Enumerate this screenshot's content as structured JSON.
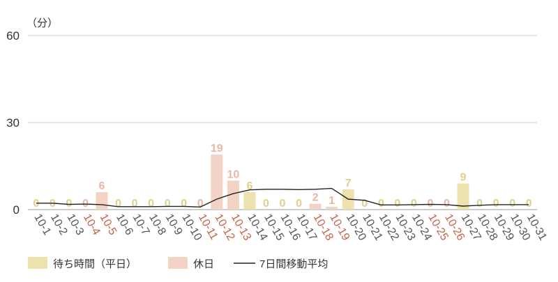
{
  "chart_data": {
    "type": "bar",
    "unit_label": "（分）",
    "ylim": [
      0,
      60
    ],
    "y_ticks": [
      "0",
      "30",
      "60"
    ],
    "grid": true,
    "categories": [
      "10-1",
      "10-2",
      "10-3",
      "10-4",
      "10-5",
      "10-6",
      "10-7",
      "10-8",
      "10-9",
      "10-10",
      "10-11",
      "10-12",
      "10-13",
      "10-14",
      "10-15",
      "10-16",
      "10-17",
      "10-18",
      "10-19",
      "10-20",
      "10-21",
      "10-22",
      "10-23",
      "10-24",
      "10-25",
      "10-26",
      "10-27",
      "10-28",
      "10-29",
      "10-30",
      "10-31"
    ],
    "holiday_flags": [
      false,
      false,
      false,
      true,
      true,
      false,
      false,
      false,
      false,
      false,
      true,
      true,
      true,
      false,
      false,
      false,
      false,
      true,
      true,
      false,
      false,
      false,
      false,
      false,
      true,
      true,
      false,
      false,
      false,
      false,
      false
    ],
    "values": [
      0,
      0,
      0,
      0,
      6,
      0,
      0,
      0,
      0,
      0,
      0,
      19,
      10,
      6,
      0,
      0,
      0,
      2,
      1,
      7,
      0,
      0,
      0,
      0,
      0,
      0,
      9,
      0,
      0,
      0,
      0
    ],
    "moving_average": [
      2.2,
      2.2,
      1.8,
      1.9,
      1.7,
      1.0,
      1.0,
      1.0,
      1.1,
      1.1,
      0.9,
      3.6,
      5.5,
      6.8,
      7.0,
      7.0,
      6.9,
      7.0,
      7.3,
      3.6,
      3.2,
      1.6,
      1.6,
      1.7,
      1.8,
      1.7,
      1.2,
      1.5,
      1.7,
      1.7,
      1.7
    ],
    "legend_position": "bottom-left",
    "series": [
      {
        "name": "待ち時間（平日）",
        "color": "#ede2ae"
      },
      {
        "name": "休日",
        "color": "#f3d3c6"
      },
      {
        "name": "7日間移動平均",
        "color": "#222222"
      }
    ],
    "colors": {
      "weekday_bar": "#ede2ae",
      "holiday_bar": "#f3d3c6",
      "weekday_label": "#e0d08e",
      "holiday_label": "#e9b8a5",
      "weekday_tick": "#555555",
      "holiday_tick": "#c7634a",
      "line": "#222222"
    }
  }
}
